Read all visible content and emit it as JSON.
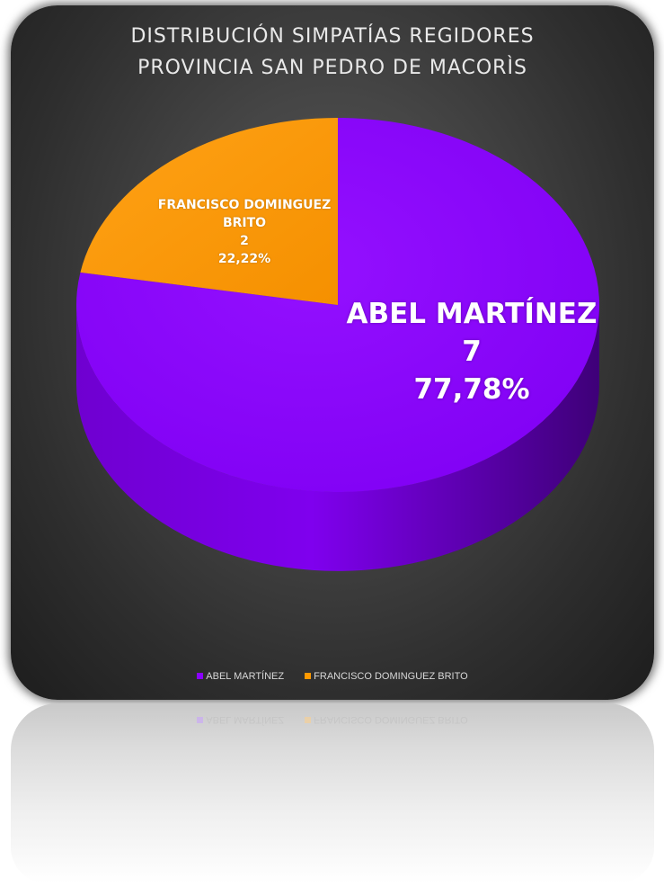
{
  "chart_data": {
    "type": "pie",
    "title_lines": [
      "DISTRIBUCIÓN  SIMPATÍAS  REGIDORES",
      "PROVINCIA  SAN  PEDRO  DE  MACORÌS"
    ],
    "categories": [
      "ABEL MARTÍNEZ",
      "FRANCISCO DOMINGUEZ BRITO"
    ],
    "values": [
      7,
      2
    ],
    "percent_labels": [
      "77,78%",
      "22,22%"
    ],
    "colors": [
      "#8a00ff",
      "#ff9900"
    ],
    "style": "3d",
    "legend": "bottom",
    "data_labels": {
      "abel": {
        "name": "ABEL MARTÍNEZ",
        "value": "7",
        "percent": "77,78%"
      },
      "francisco": {
        "name_line1": "FRANCISCO DOMINGUEZ",
        "name_line2": "BRITO",
        "value": "2",
        "percent": "22,22%"
      }
    }
  },
  "legend": {
    "items": [
      {
        "label": "ABEL MARTÍNEZ",
        "color": "#8a00ff"
      },
      {
        "label": "FRANCISCO DOMINGUEZ BRITO",
        "color": "#ff9900"
      }
    ]
  }
}
